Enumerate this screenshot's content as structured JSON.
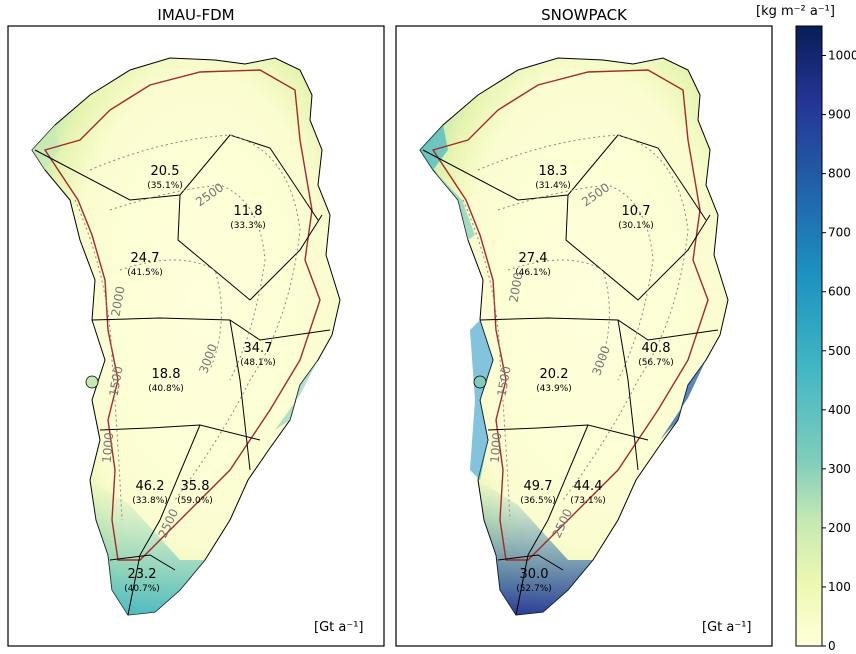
{
  "panels": [
    {
      "title": "IMAU-FDM",
      "unit": "[Gt a⁻¹]",
      "basins": [
        {
          "value": "20.5",
          "pct": "(35.1%)"
        },
        {
          "value": "11.8",
          "pct": "(33.3%)"
        },
        {
          "value": "24.7",
          "pct": "(41.5%)"
        },
        {
          "value": "34.7",
          "pct": "(48.1%)"
        },
        {
          "value": "18.8",
          "pct": "(40.8%)"
        },
        {
          "value": "46.2",
          "pct": "(33.8%)"
        },
        {
          "value": "35.8",
          "pct": "(59.0%)"
        },
        {
          "value": "23.2",
          "pct": "(40.7%)"
        }
      ],
      "contours": [
        "2500",
        "2000",
        "3000",
        "1500",
        "1000",
        "2500"
      ]
    },
    {
      "title": "SNOWPACK",
      "unit": "[Gt a⁻¹]",
      "basins": [
        {
          "value": "18.3",
          "pct": "(31.4%)"
        },
        {
          "value": "10.7",
          "pct": "(30.1%)"
        },
        {
          "value": "27.4",
          "pct": "(46.1%)"
        },
        {
          "value": "40.8",
          "pct": "(56.7%)"
        },
        {
          "value": "20.2",
          "pct": "(43.9%)"
        },
        {
          "value": "49.7",
          "pct": "(36.5%)"
        },
        {
          "value": "44.4",
          "pct": "(73.1%)"
        },
        {
          "value": "30.0",
          "pct": "(52.7%)"
        }
      ],
      "contours": [
        "2500",
        "2000",
        "3000",
        "1500",
        "1000",
        "2500"
      ]
    }
  ],
  "colorbar": {
    "title": "[kg m⁻² a⁻¹]",
    "ticks": [
      "0",
      "100",
      "200",
      "300",
      "400",
      "500",
      "600",
      "700",
      "800",
      "900",
      "1000"
    ],
    "min": 0,
    "max": 1050,
    "colors": [
      "#ffffd9",
      "#edf8b1",
      "#c7e9b4",
      "#7fcdbb",
      "#41b6c4",
      "#1d91c0",
      "#225ea8",
      "#253494",
      "#081d58"
    ]
  }
}
